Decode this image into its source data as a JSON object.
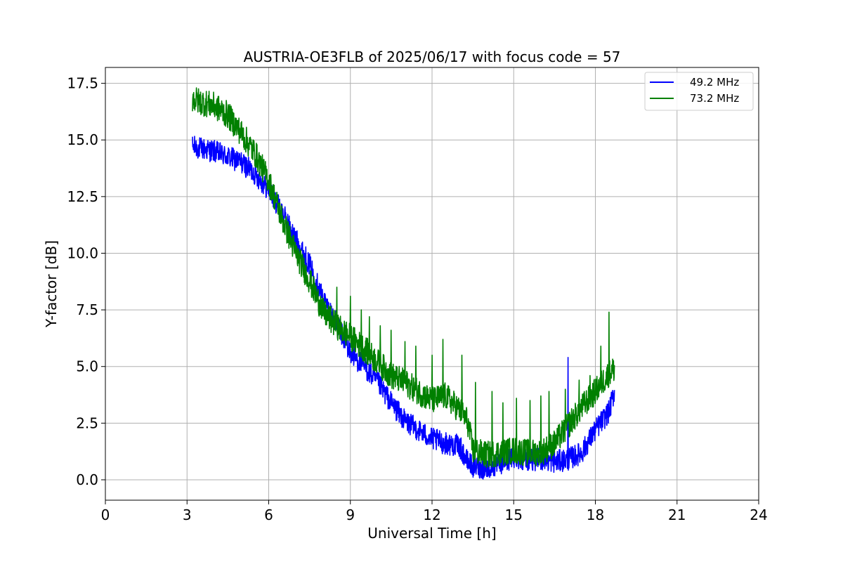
{
  "chart_data": {
    "type": "line",
    "title": "AUSTRIA-OE3FLB of 2025/06/17 with focus code = 57",
    "xlabel": "Universal Time [h]",
    "ylabel": "Y-factor [dB]",
    "xlim": [
      0,
      24
    ],
    "ylim": [
      -0.9,
      18.2
    ],
    "xticks": [
      0,
      3,
      6,
      9,
      12,
      15,
      18,
      21,
      24
    ],
    "xtick_labels": [
      "0",
      "3",
      "6",
      "9",
      "12",
      "15",
      "18",
      "21",
      "24"
    ],
    "yticks": [
      0.0,
      2.5,
      5.0,
      7.5,
      10.0,
      12.5,
      15.0,
      17.5
    ],
    "ytick_labels": [
      "0.0",
      "2.5",
      "5.0",
      "7.5",
      "10.0",
      "12.5",
      "15.0",
      "17.5"
    ],
    "grid": true,
    "legend_position": "top-right",
    "series": [
      {
        "name": "49.2 MHz",
        "color": "#0000ff",
        "noise_band": 0.5,
        "x": [
          3.2,
          4.0,
          5.0,
          5.5,
          6.0,
          6.5,
          7.0,
          7.5,
          8.0,
          8.5,
          9.0,
          9.5,
          10.0,
          10.5,
          11.0,
          11.5,
          12.0,
          12.5,
          13.0,
          13.3,
          13.5,
          14.0,
          14.5,
          15.0,
          15.5,
          16.0,
          16.5,
          17.0,
          17.5,
          18.0,
          18.5,
          18.7
        ],
        "y": [
          14.7,
          14.5,
          14.0,
          13.5,
          12.8,
          11.8,
          10.6,
          9.5,
          8.0,
          6.9,
          5.6,
          5.0,
          4.3,
          3.4,
          2.6,
          2.2,
          1.8,
          1.6,
          1.5,
          0.8,
          0.6,
          0.5,
          0.7,
          1.0,
          0.9,
          0.9,
          0.8,
          0.9,
          1.2,
          2.2,
          3.0,
          3.9
        ],
        "spikes": [
          [
            17.0,
            5.4
          ],
          [
            18.2,
            2.9
          ]
        ]
      },
      {
        "name": "73.2 MHz",
        "color": "#008000",
        "noise_band": 0.6,
        "x": [
          3.2,
          4.0,
          4.5,
          5.0,
          5.5,
          6.0,
          6.5,
          7.0,
          7.5,
          8.0,
          8.5,
          9.0,
          9.5,
          10.0,
          10.5,
          11.0,
          11.5,
          12.0,
          12.5,
          13.0,
          13.3,
          13.5,
          14.0,
          14.5,
          15.0,
          15.5,
          16.0,
          16.5,
          17.0,
          17.5,
          18.0,
          18.5,
          18.7
        ],
        "y": [
          16.8,
          16.5,
          16.1,
          15.3,
          14.4,
          13.2,
          11.5,
          10.0,
          8.8,
          7.4,
          6.8,
          6.3,
          5.8,
          5.2,
          4.6,
          4.3,
          3.9,
          3.5,
          3.7,
          3.1,
          2.6,
          1.3,
          1.1,
          1.2,
          1.3,
          1.2,
          1.2,
          1.6,
          2.4,
          3.2,
          3.9,
          4.7,
          4.9
        ],
        "spikes": [
          [
            7.9,
            8.1
          ],
          [
            8.5,
            8.5
          ],
          [
            9.0,
            8.1
          ],
          [
            9.4,
            7.5
          ],
          [
            9.7,
            7.2
          ],
          [
            10.1,
            6.8
          ],
          [
            10.5,
            6.6
          ],
          [
            11.0,
            6.1
          ],
          [
            11.4,
            5.9
          ],
          [
            12.0,
            5.5
          ],
          [
            12.4,
            6.2
          ],
          [
            13.1,
            5.5
          ],
          [
            13.6,
            4.3
          ],
          [
            14.2,
            3.9
          ],
          [
            14.6,
            3.4
          ],
          [
            15.1,
            3.6
          ],
          [
            15.6,
            3.5
          ],
          [
            16.0,
            3.7
          ],
          [
            16.3,
            3.9
          ],
          [
            16.9,
            4.0
          ],
          [
            17.4,
            4.4
          ],
          [
            17.8,
            4.6
          ],
          [
            18.2,
            5.9
          ],
          [
            18.5,
            7.4
          ]
        ]
      }
    ]
  }
}
